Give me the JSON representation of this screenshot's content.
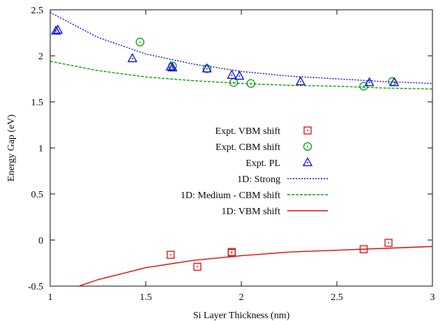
{
  "chart_data": {
    "type": "scatter",
    "xlabel": "Si Layer Thickness (nm)",
    "ylabel": "Energy Gap (eV)",
    "xlim": [
      1,
      3
    ],
    "ylim": [
      -0.5,
      2.5
    ],
    "xticks": [
      1,
      1.5,
      2,
      2.5,
      3
    ],
    "yticks": [
      -0.5,
      0,
      0.5,
      1,
      1.5,
      2,
      2.5
    ],
    "xtick_labels": [
      "1",
      "1.5",
      "2",
      "2.5",
      "3"
    ],
    "ytick_labels": [
      "-0.5",
      "0",
      "0.5",
      "1",
      "1.5",
      "2",
      "2.5"
    ],
    "grid": false,
    "legend_position": "center-right",
    "series": [
      {
        "name": "Expt. VBM shift",
        "kind": "points",
        "marker": "square-dot",
        "color": "#dd0000",
        "points": [
          [
            1.63,
            -0.16
          ],
          [
            1.77,
            -0.29
          ],
          [
            1.95,
            -0.13
          ],
          [
            1.95,
            -0.14
          ],
          [
            2.64,
            -0.1
          ],
          [
            2.77,
            -0.03
          ]
        ]
      },
      {
        "name": "Expt. CBM shift",
        "kind": "points",
        "marker": "circle-dot",
        "color": "#009900",
        "points": [
          [
            1.47,
            2.15
          ],
          [
            1.64,
            1.89
          ],
          [
            1.82,
            1.86
          ],
          [
            1.96,
            1.71
          ],
          [
            2.05,
            1.7
          ],
          [
            2.64,
            1.67
          ],
          [
            2.79,
            1.72
          ]
        ]
      },
      {
        "name": "Expt. PL",
        "kind": "points",
        "marker": "triangle-dot",
        "color": "#0000dd",
        "points": [
          [
            1.03,
            2.27
          ],
          [
            1.04,
            2.28
          ],
          [
            1.43,
            1.97
          ],
          [
            1.63,
            1.88
          ],
          [
            1.64,
            1.87
          ],
          [
            1.82,
            1.86
          ],
          [
            1.95,
            1.79
          ],
          [
            1.99,
            1.78
          ],
          [
            2.31,
            1.72
          ],
          [
            2.67,
            1.71
          ],
          [
            2.8,
            1.71
          ]
        ]
      },
      {
        "name": "1D: Strong",
        "kind": "line",
        "style": "dotted",
        "color": "#0000dd",
        "points": [
          [
            1.0,
            2.47
          ],
          [
            1.25,
            2.2
          ],
          [
            1.5,
            2.02
          ],
          [
            1.75,
            1.91
          ],
          [
            2.0,
            1.83
          ],
          [
            2.25,
            1.78
          ],
          [
            2.5,
            1.75
          ],
          [
            2.75,
            1.72
          ],
          [
            3.0,
            1.7
          ]
        ]
      },
      {
        "name": "1D: Medium - CBM shift",
        "kind": "line",
        "style": "dashed",
        "color": "#009900",
        "points": [
          [
            1.0,
            1.94
          ],
          [
            1.25,
            1.84
          ],
          [
            1.5,
            1.77
          ],
          [
            1.75,
            1.73
          ],
          [
            2.0,
            1.7
          ],
          [
            2.25,
            1.68
          ],
          [
            2.5,
            1.67
          ],
          [
            2.75,
            1.65
          ],
          [
            3.0,
            1.64
          ]
        ]
      },
      {
        "name": "1D: VBM shift",
        "kind": "line",
        "style": "solid",
        "color": "#dd0000",
        "points": [
          [
            1.15,
            -0.5
          ],
          [
            1.25,
            -0.43
          ],
          [
            1.5,
            -0.3
          ],
          [
            1.75,
            -0.22
          ],
          [
            2.0,
            -0.17
          ],
          [
            2.25,
            -0.13
          ],
          [
            2.5,
            -0.11
          ],
          [
            2.75,
            -0.09
          ],
          [
            3.0,
            -0.07
          ]
        ]
      }
    ]
  }
}
